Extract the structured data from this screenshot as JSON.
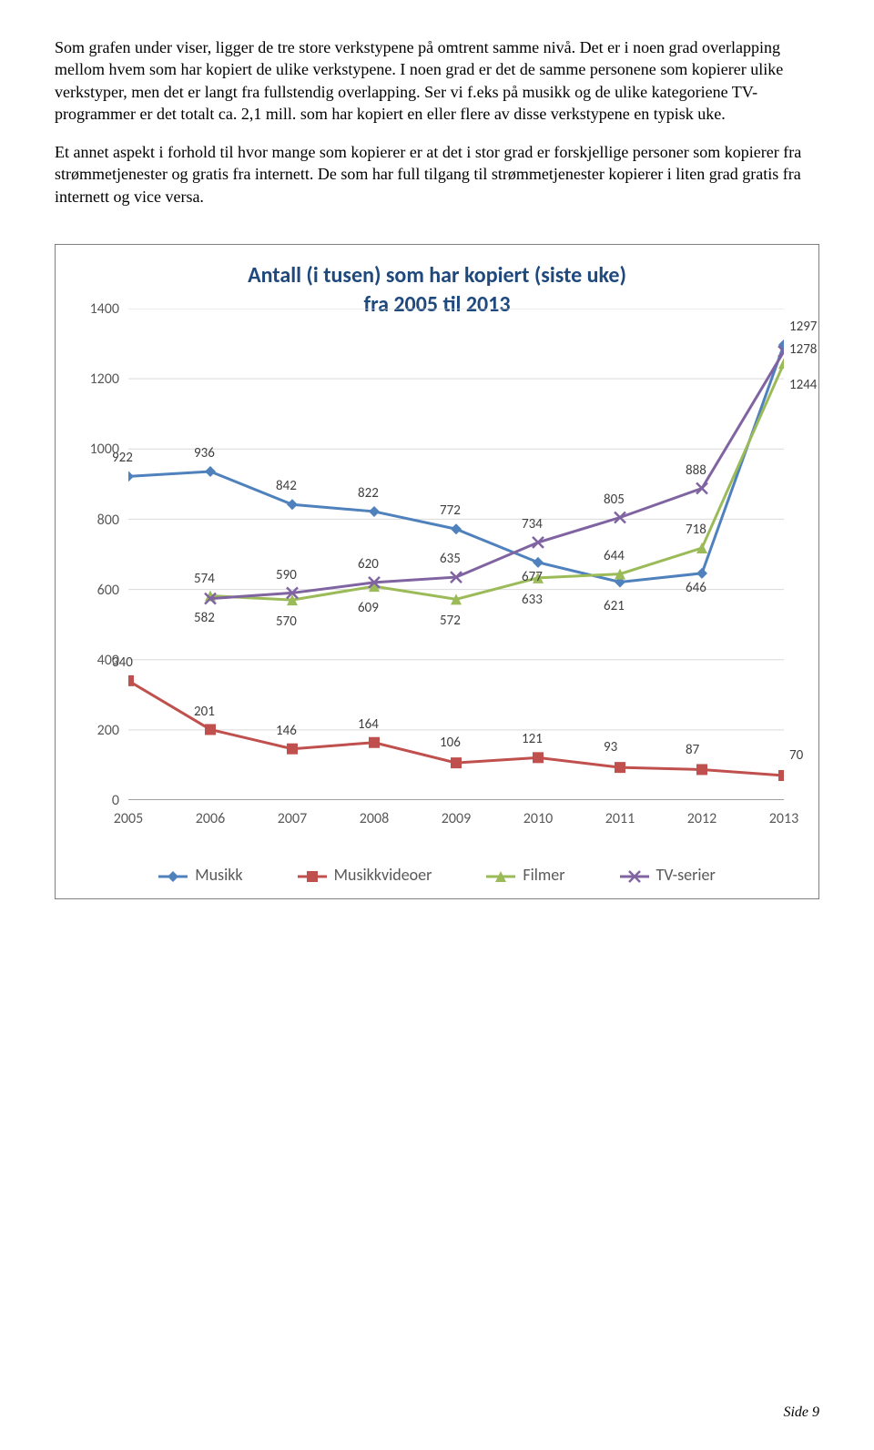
{
  "paragraphs": {
    "p1": "Som grafen under viser, ligger de tre store verkstypene på omtrent samme nivå. Det er i noen grad overlapping mellom hvem som har kopiert de ulike verkstypene. I noen grad er det de samme personene som kopierer ulike verkstyper, men det er langt fra fullstendig overlapping. Ser vi f.eks på musikk og de ulike kategoriene TV-programmer er det totalt ca. 2,1 mill. som har kopiert en eller flere av disse verkstypene en typisk uke.",
    "p2": "Et annet aspekt i forhold til hvor mange som kopierer er at det i stor grad er forskjellige personer som kopierer fra strømmetjenester og gratis fra internett. De som har full tilgang til strømmetjenester kopierer i liten grad gratis fra internett og vice versa."
  },
  "chart": {
    "type": "line",
    "title_line1": "Antall (i tusen) som har kopiert (siste uke)",
    "title_line2": "fra 2005 til 2013",
    "title_color": "#1f497d",
    "title_fontsize": 24,
    "background_color": "#ffffff",
    "grid_color": "#d9d9d9",
    "axis_color": "#808080",
    "years": [
      "2005",
      "2006",
      "2007",
      "2008",
      "2009",
      "2010",
      "2011",
      "2012",
      "2013"
    ],
    "ylim": [
      0,
      1400
    ],
    "ytick_step": 200,
    "yticks": [
      "0",
      "200",
      "400",
      "600",
      "800",
      "1000",
      "1200",
      "1400"
    ],
    "series": [
      {
        "name": "Musikk",
        "color": "#4f81bd",
        "marker": "diamond",
        "values": [
          922,
          936,
          842,
          822,
          772,
          677,
          621,
          646,
          1297
        ],
        "label_dy": [
          -22,
          -22,
          -22,
          -22,
          -22,
          14,
          24,
          14,
          -22
        ]
      },
      {
        "name": "Musikkvideoer",
        "color": "#c0504d",
        "marker": "square",
        "values": [
          340,
          201,
          146,
          164,
          106,
          121,
          93,
          87,
          70
        ],
        "label_dy": [
          -22,
          -22,
          -22,
          -22,
          -24,
          -22,
          -24,
          -24,
          -24
        ]
      },
      {
        "name": "Filmer",
        "color": "#9bbb59",
        "marker": "triangle",
        "values": [
          null,
          582,
          570,
          609,
          572,
          633,
          644,
          718,
          1244
        ],
        "label_dy": [
          0,
          22,
          22,
          22,
          22,
          22,
          -22,
          -22,
          22
        ]
      },
      {
        "name": "TV-serier",
        "color": "#8064a2",
        "marker": "x",
        "values": [
          null,
          574,
          590,
          620,
          635,
          734,
          805,
          888,
          1278
        ],
        "label_dy": [
          0,
          -24,
          -22,
          -22,
          -22,
          -22,
          -22,
          -22,
          -4
        ]
      }
    ],
    "legend_labels": [
      "Musikk",
      "Musikkvideoer",
      "Filmer",
      "TV-serier"
    ]
  },
  "footer": "Side 9"
}
